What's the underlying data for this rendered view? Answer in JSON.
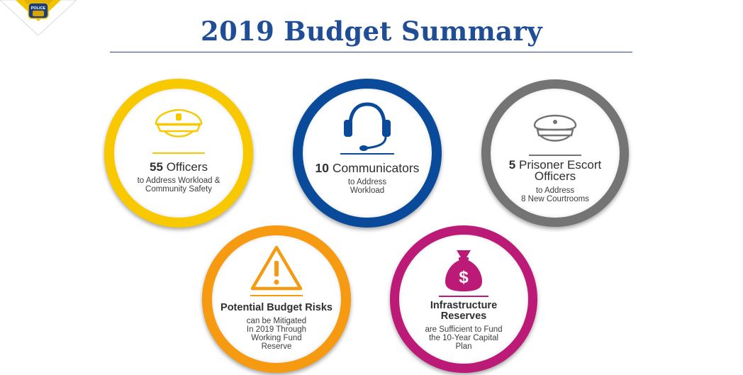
{
  "page": {
    "title": "2019 Budget Summary",
    "logo_label": "POLICE"
  },
  "colors": {
    "title": "#1f4e96",
    "yellow": "#f8c800",
    "blue": "#0a4a9b",
    "gray": "#747474",
    "orange": "#f59a11",
    "magenta": "#bb1a77"
  },
  "badges": [
    {
      "icon": "police-cap-icon",
      "number": "55",
      "label": "Officers",
      "detail_lines": [
        "to Address Workload &",
        "Community Safety"
      ]
    },
    {
      "icon": "headset-icon",
      "number": "10",
      "label": "Communicators",
      "detail_lines": [
        "to Address",
        "Workload"
      ]
    },
    {
      "icon": "officer-cap-icon",
      "number": "5",
      "label_lines": [
        "Prisoner Escort",
        "Officers"
      ],
      "detail_lines": [
        "to Address",
        "8 New Courtrooms"
      ]
    },
    {
      "icon": "warning-icon",
      "label": "Potential Budget Risks",
      "detail_lines": [
        "can be Mitigated",
        "In 2019 Through",
        "Working Fund",
        "Reserve"
      ]
    },
    {
      "icon": "money-bag-icon",
      "label_lines": [
        "Infrastructure",
        "Reserves"
      ],
      "detail_lines": [
        "are Sufficient to Fund",
        "the 10-Year Capital",
        "Plan"
      ]
    }
  ]
}
